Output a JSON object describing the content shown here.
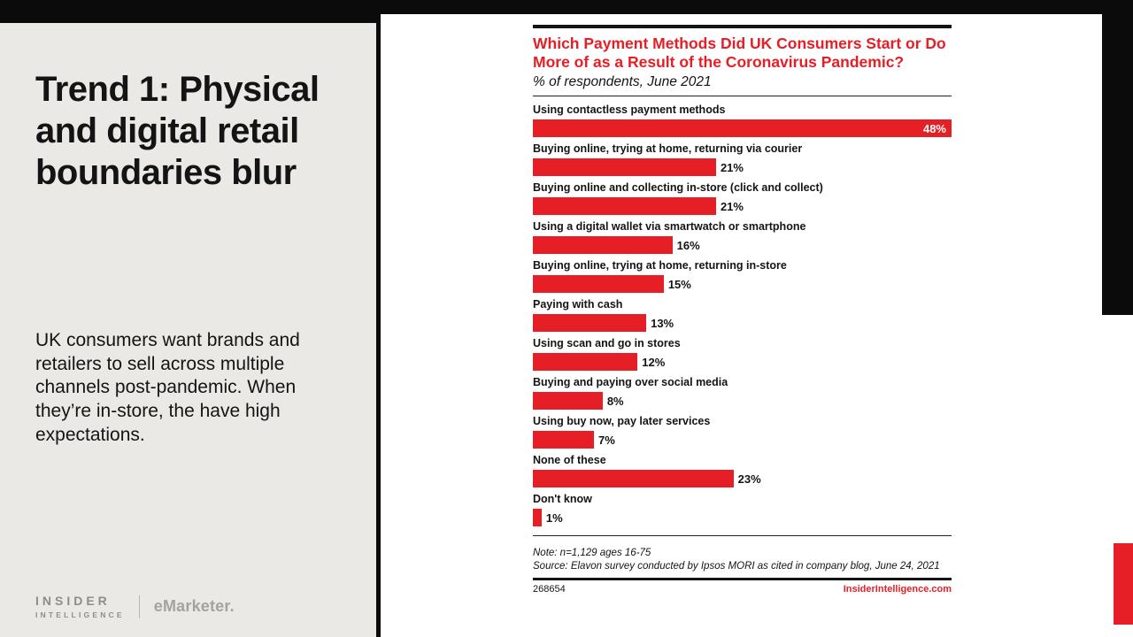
{
  "slide": {
    "title": "Trend 1: Physical and digital retail boundaries blur",
    "body": "UK consumers want brands and retailers to sell across multiple channels post-pandemic. When they’re in-store, the have high expectations.",
    "logo": {
      "insider": "INSIDER",
      "intelligence": "INTELLIGENCE",
      "emarketer": "eMarketer."
    }
  },
  "chart": {
    "note": "Note: n=1,129 ages 16-75",
    "source": "Source: Elavon survey conducted by Ipsos MORI as cited in company blog, June 24, 2021",
    "chart_id": "268654",
    "site": "InsiderIntelligence.com"
  },
  "chart_data": {
    "type": "bar",
    "orientation": "horizontal",
    "title": "Which Payment Methods Did UK Consumers Start or Do More of as a Result of the Coronavirus Pandemic?",
    "subtitle": "% of respondents, June 2021",
    "categories": [
      "Using contactless payment methods",
      "Buying online, trying at home, returning via courier",
      "Buying online and collecting in-store (click and collect)",
      "Using a digital wallet via smartwatch or smartphone",
      "Buying online, trying at home, returning in-store",
      "Paying with cash",
      "Using scan and go in stores",
      "Buying and paying over social media",
      "Using buy now, pay later services",
      "None of these",
      "Don't know"
    ],
    "values": [
      48,
      21,
      21,
      16,
      15,
      13,
      12,
      8,
      7,
      23,
      1
    ],
    "labels": [
      "48%",
      "21%",
      "21%",
      "16%",
      "15%",
      "13%",
      "12%",
      "8%",
      "7%",
      "23%",
      "1%"
    ],
    "unit": "%",
    "xlim": [
      0,
      48
    ],
    "bar_color": "#e51f25",
    "grid": false,
    "legend": "none"
  },
  "colors": {
    "accent_red": "#e51f25",
    "panel_gray": "#eae9e6",
    "black": "#0b0b0b",
    "white": "#ffffff"
  }
}
